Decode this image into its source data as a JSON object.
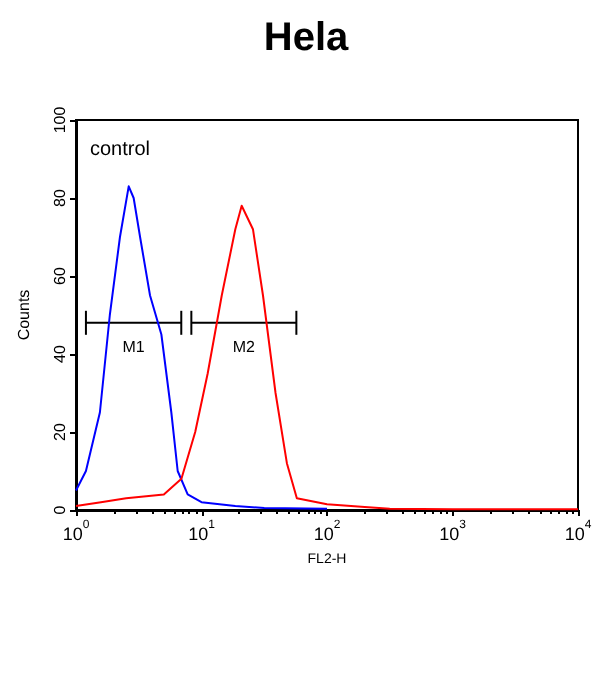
{
  "chart_data": {
    "type": "line",
    "title": "Hela",
    "xlabel": "FL2-H",
    "ylabel": "Counts",
    "log": "x",
    "grid": false,
    "marker": "none",
    "line_style": "solid",
    "xlim": [
      1,
      10000
    ],
    "xticks": [
      {
        "value": 1,
        "label": "10$^{0}$"
      },
      {
        "value": 10,
        "label": "10$^{1}$"
      },
      {
        "value": 100,
        "label": "10$^{2}$"
      },
      {
        "value": 1000,
        "label": "10$^{3}$"
      },
      {
        "value": 10000,
        "label": "10$^{4}$"
      }
    ],
    "ylim": [
      0,
      100
    ],
    "yticks": [
      0,
      20,
      40,
      60,
      80,
      100
    ],
    "annotations": [
      "control"
    ],
    "series": [
      {
        "type": "line",
        "name": "M1",
        "color": "#000000",
        "x": [
          1.2,
          6.9
        ],
        "values": [
          48,
          48
        ]
      },
      {
        "type": "line",
        "name": "M2",
        "color": "#000000",
        "x": [
          8.3,
          57
        ],
        "values": [
          48,
          48
        ]
      },
      {
        "color": "#0000ff",
        "x": [
          1,
          1.2,
          1.55,
          1.86,
          2.24,
          2.63,
          2.88,
          3.24,
          3.89,
          4.79,
          5.75,
          6.46,
          7.76,
          10,
          18.6,
          31.6,
          100
        ],
        "values": [
          5,
          10,
          25,
          50,
          70,
          83,
          80,
          70,
          55,
          45,
          25,
          10,
          4,
          2,
          1,
          0.5,
          0.3
        ]
      },
      {
        "color": "#ff0000",
        "x": [
          1,
          1.58,
          2.51,
          5.01,
          6.92,
          8.91,
          11.2,
          14.5,
          18.6,
          20.9,
          25.7,
          30.9,
          38.9,
          47.9,
          57.5,
          100,
          200,
          316,
          1000,
          10000
        ],
        "values": [
          1,
          2,
          3,
          4,
          8,
          20,
          35,
          55,
          72,
          78,
          72,
          55,
          30,
          12,
          3,
          1.5,
          0.8,
          0.3,
          0.2,
          0.2
        ]
      }
    ]
  }
}
